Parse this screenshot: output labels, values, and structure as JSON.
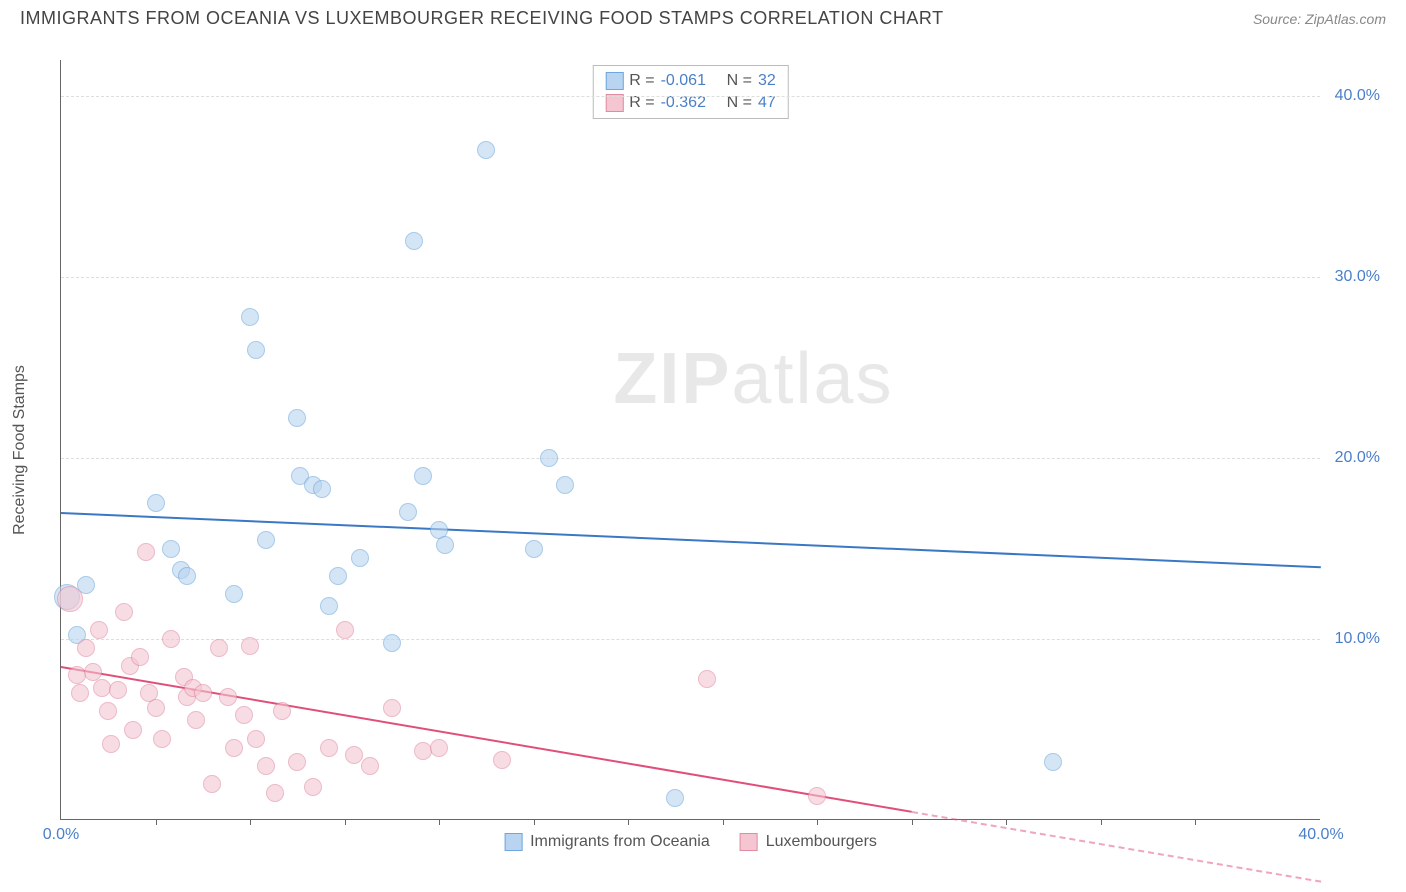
{
  "header": {
    "title": "IMMIGRANTS FROM OCEANIA VS LUXEMBOURGER RECEIVING FOOD STAMPS CORRELATION CHART",
    "source": "Source: ZipAtlas.com"
  },
  "chart": {
    "type": "scatter",
    "y_axis_label": "Receiving Food Stamps",
    "watermark_zip": "ZIP",
    "watermark_atlas": "atlas",
    "background_color": "#ffffff",
    "grid_color": "#dddddd",
    "axis_color": "#666666",
    "tick_label_color": "#4a7fc9",
    "xlim": [
      0,
      40
    ],
    "ylim": [
      0,
      42
    ],
    "y_ticks": [
      {
        "value": 10,
        "label": "10.0%"
      },
      {
        "value": 20,
        "label": "20.0%"
      },
      {
        "value": 30,
        "label": "30.0%"
      },
      {
        "value": 40,
        "label": "40.0%"
      }
    ],
    "x_ticks": [
      {
        "value": 0,
        "label": "0.0%"
      },
      {
        "value": 40,
        "label": "40.0%"
      }
    ],
    "x_minor_ticks": [
      3,
      6,
      9,
      12,
      15,
      18,
      21,
      24,
      27,
      30,
      33,
      36
    ],
    "series": [
      {
        "name": "Immigrants from Oceania",
        "fill_color": "#b8d4f0",
        "stroke_color": "#6fa8dc",
        "fill_opacity": 0.6,
        "marker_radius": 9,
        "trend": {
          "x1": 0,
          "y1": 17.0,
          "x2": 40,
          "y2": 14.0,
          "color": "#3b78c4",
          "width": 2
        },
        "r_value": "-0.061",
        "n_value": "32",
        "points": [
          {
            "x": 0.2,
            "y": 12.3,
            "r": 13
          },
          {
            "x": 0.8,
            "y": 13.0
          },
          {
            "x": 0.5,
            "y": 10.2
          },
          {
            "x": 3.0,
            "y": 17.5
          },
          {
            "x": 3.5,
            "y": 15.0
          },
          {
            "x": 3.8,
            "y": 13.8
          },
          {
            "x": 4.0,
            "y": 13.5
          },
          {
            "x": 5.5,
            "y": 12.5
          },
          {
            "x": 6.0,
            "y": 27.8
          },
          {
            "x": 6.2,
            "y": 26.0
          },
          {
            "x": 6.5,
            "y": 15.5
          },
          {
            "x": 7.5,
            "y": 22.2
          },
          {
            "x": 7.6,
            "y": 19.0
          },
          {
            "x": 8.0,
            "y": 18.5
          },
          {
            "x": 8.3,
            "y": 18.3
          },
          {
            "x": 8.5,
            "y": 11.8
          },
          {
            "x": 8.8,
            "y": 13.5
          },
          {
            "x": 9.5,
            "y": 14.5
          },
          {
            "x": 10.5,
            "y": 9.8
          },
          {
            "x": 11.0,
            "y": 17.0
          },
          {
            "x": 11.2,
            "y": 32.0
          },
          {
            "x": 11.5,
            "y": 19.0
          },
          {
            "x": 12.0,
            "y": 16.0
          },
          {
            "x": 12.2,
            "y": 15.2
          },
          {
            "x": 13.5,
            "y": 37.0
          },
          {
            "x": 15.0,
            "y": 15.0
          },
          {
            "x": 15.5,
            "y": 20.0
          },
          {
            "x": 16.0,
            "y": 18.5
          },
          {
            "x": 19.5,
            "y": 1.2
          },
          {
            "x": 31.5,
            "y": 3.2
          }
        ]
      },
      {
        "name": "Luxembourgers",
        "fill_color": "#f5c6d2",
        "stroke_color": "#e08ca3",
        "fill_opacity": 0.6,
        "marker_radius": 9,
        "trend": {
          "x1": 0,
          "y1": 8.5,
          "x2": 27,
          "y2": 0.5,
          "color": "#e04f7a",
          "width": 2,
          "dash_extend_to": 40
        },
        "r_value": "-0.362",
        "n_value": "47",
        "points": [
          {
            "x": 0.3,
            "y": 12.2,
            "r": 13
          },
          {
            "x": 0.5,
            "y": 8.0
          },
          {
            "x": 0.6,
            "y": 7.0
          },
          {
            "x": 0.8,
            "y": 9.5
          },
          {
            "x": 1.0,
            "y": 8.2
          },
          {
            "x": 1.2,
            "y": 10.5
          },
          {
            "x": 1.3,
            "y": 7.3
          },
          {
            "x": 1.5,
            "y": 6.0
          },
          {
            "x": 1.6,
            "y": 4.2
          },
          {
            "x": 1.8,
            "y": 7.2
          },
          {
            "x": 2.0,
            "y": 11.5
          },
          {
            "x": 2.2,
            "y": 8.5
          },
          {
            "x": 2.3,
            "y": 5.0
          },
          {
            "x": 2.5,
            "y": 9.0
          },
          {
            "x": 2.7,
            "y": 14.8
          },
          {
            "x": 2.8,
            "y": 7.0
          },
          {
            "x": 3.0,
            "y": 6.2
          },
          {
            "x": 3.2,
            "y": 4.5
          },
          {
            "x": 3.5,
            "y": 10.0
          },
          {
            "x": 3.9,
            "y": 7.9
          },
          {
            "x": 4.0,
            "y": 6.8
          },
          {
            "x": 4.2,
            "y": 7.3
          },
          {
            "x": 4.3,
            "y": 5.5
          },
          {
            "x": 4.5,
            "y": 7.0
          },
          {
            "x": 4.8,
            "y": 2.0
          },
          {
            "x": 5.0,
            "y": 9.5
          },
          {
            "x": 5.3,
            "y": 6.8
          },
          {
            "x": 5.5,
            "y": 4.0
          },
          {
            "x": 5.8,
            "y": 5.8
          },
          {
            "x": 6.0,
            "y": 9.6
          },
          {
            "x": 6.2,
            "y": 4.5
          },
          {
            "x": 6.5,
            "y": 3.0
          },
          {
            "x": 6.8,
            "y": 1.5
          },
          {
            "x": 7.0,
            "y": 6.0
          },
          {
            "x": 7.5,
            "y": 3.2
          },
          {
            "x": 8.0,
            "y": 1.8
          },
          {
            "x": 8.5,
            "y": 4.0
          },
          {
            "x": 9.0,
            "y": 10.5
          },
          {
            "x": 9.3,
            "y": 3.6
          },
          {
            "x": 9.8,
            "y": 3.0
          },
          {
            "x": 10.5,
            "y": 6.2
          },
          {
            "x": 11.5,
            "y": 3.8
          },
          {
            "x": 12.0,
            "y": 4.0
          },
          {
            "x": 14.0,
            "y": 3.3
          },
          {
            "x": 20.5,
            "y": 7.8
          },
          {
            "x": 24.0,
            "y": 1.3
          }
        ]
      }
    ],
    "bottom_legend": [
      {
        "label": "Immigrants from Oceania",
        "fill": "#b8d4f0",
        "stroke": "#6fa8dc"
      },
      {
        "label": "Luxembourgers",
        "fill": "#f5c6d2",
        "stroke": "#e08ca3"
      }
    ]
  }
}
